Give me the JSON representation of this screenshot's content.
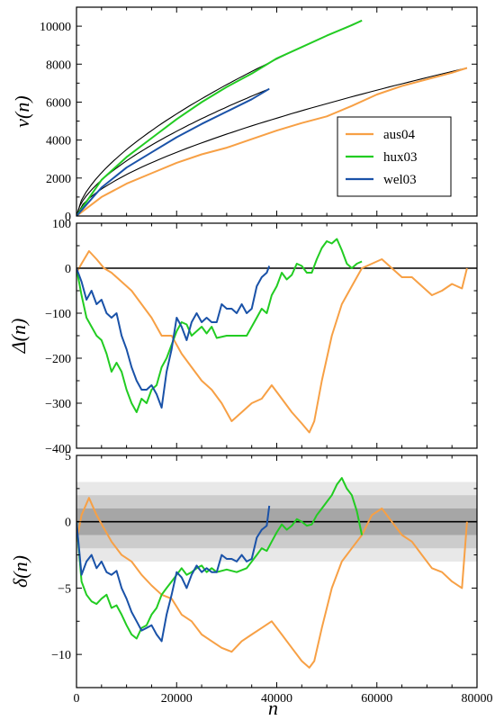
{
  "chart_data": [
    {
      "type": "line",
      "ylabel": "v(n)",
      "xlabel": "",
      "xlim": [
        0,
        80000
      ],
      "ylim": [
        0,
        11000
      ],
      "yticks": [
        0,
        2000,
        4000,
        6000,
        8000,
        10000
      ],
      "ytick_labels": [
        "0",
        "2000",
        "4000",
        "6000",
        "8000",
        "10000"
      ],
      "legend": {
        "placement": "right-middle",
        "entries": [
          "aus04",
          "hux03",
          "wel03"
        ]
      },
      "series": [
        {
          "name": "aus04",
          "color": "#f7a045",
          "x": [
            0,
            5000,
            10000,
            15000,
            20000,
            25000,
            30000,
            35000,
            40000,
            45000,
            50000,
            55000,
            60000,
            65000,
            70000,
            75000,
            78000
          ],
          "y": [
            0,
            1000,
            1700,
            2250,
            2800,
            3250,
            3600,
            4050,
            4500,
            4900,
            5250,
            5800,
            6400,
            6850,
            7200,
            7550,
            7800
          ]
        },
        {
          "name": "hux03",
          "color": "#22cc22",
          "x": [
            0,
            5000,
            10000,
            15000,
            20000,
            25000,
            30000,
            35000,
            40000,
            45000,
            50000,
            55000,
            57000
          ],
          "y": [
            0,
            1900,
            3100,
            4100,
            5100,
            6000,
            6800,
            7500,
            8300,
            8900,
            9500,
            10050,
            10300
          ]
        },
        {
          "name": "wel03",
          "color": "#1a52a8",
          "x": [
            0,
            5000,
            10000,
            15000,
            20000,
            25000,
            30000,
            35000,
            38500
          ],
          "y": [
            0,
            1500,
            2550,
            3350,
            4150,
            4850,
            5500,
            6150,
            6700
          ]
        }
      ],
      "fit_curves": {
        "color": "#000000",
        "series": [
          "aus04",
          "hux03",
          "wel03"
        ]
      }
    },
    {
      "type": "line",
      "ylabel": "Δ(n)",
      "xlabel": "",
      "xlim": [
        0,
        80000
      ],
      "ylim": [
        -400,
        100
      ],
      "yticks": [
        100,
        0,
        -100,
        -200,
        -300,
        -400
      ],
      "ytick_labels": [
        "100",
        "0",
        "−100",
        "−200",
        "−300",
        "−400"
      ],
      "reference_line": 0,
      "series": [
        {
          "name": "aus04",
          "color": "#f7a045",
          "x": [
            0,
            1000,
            2500,
            4000,
            5500,
            7000,
            9000,
            11000,
            13000,
            15000,
            17000,
            19000,
            21000,
            23000,
            25000,
            27000,
            29000,
            31000,
            33000,
            35000,
            37000,
            39000,
            41000,
            43000,
            45000,
            46500,
            47500,
            49000,
            51000,
            53000,
            55000,
            57000,
            59000,
            61000,
            63000,
            65000,
            67000,
            69000,
            71000,
            73000,
            75000,
            77000,
            78000
          ],
          "y": [
            -10,
            10,
            38,
            20,
            0,
            -10,
            -30,
            -50,
            -80,
            -110,
            -150,
            -150,
            -190,
            -220,
            -250,
            -270,
            -300,
            -340,
            -320,
            -300,
            -290,
            -260,
            -290,
            -320,
            -345,
            -365,
            -340,
            -250,
            -150,
            -80,
            -40,
            0,
            10,
            20,
            0,
            -20,
            -20,
            -40,
            -60,
            -50,
            -35,
            -45,
            0
          ]
        },
        {
          "name": "hux03",
          "color": "#22cc22",
          "x": [
            0,
            1000,
            2000,
            3000,
            4000,
            5000,
            6000,
            7000,
            8000,
            9000,
            10000,
            11000,
            12000,
            13000,
            14000,
            15000,
            16000,
            17000,
            18000,
            19000,
            20000,
            21000,
            22000,
            23000,
            24000,
            25000,
            26000,
            27000,
            28000,
            30000,
            32000,
            34000,
            36000,
            37000,
            38000,
            39000,
            40000,
            41000,
            42000,
            43000,
            44000,
            45000,
            46000,
            47000,
            48000,
            49000,
            50000,
            51000,
            52000,
            53000,
            54000,
            55000,
            56000,
            57000
          ],
          "y": [
            0,
            -60,
            -110,
            -130,
            -150,
            -160,
            -190,
            -230,
            -210,
            -230,
            -270,
            -300,
            -320,
            -290,
            -300,
            -270,
            -260,
            -220,
            -200,
            -170,
            -140,
            -120,
            -125,
            -150,
            -140,
            -130,
            -145,
            -130,
            -155,
            -150,
            -150,
            -150,
            -110,
            -90,
            -100,
            -60,
            -40,
            -10,
            -25,
            -15,
            10,
            5,
            -10,
            -10,
            20,
            45,
            60,
            55,
            65,
            40,
            10,
            0,
            10,
            15
          ]
        },
        {
          "name": "wel03",
          "color": "#1a52a8",
          "x": [
            0,
            1000,
            2000,
            3000,
            4000,
            5000,
            6000,
            7000,
            8000,
            9000,
            10000,
            11000,
            12000,
            13000,
            14000,
            15000,
            16000,
            17000,
            18000,
            19000,
            20000,
            21000,
            22000,
            23000,
            24000,
            25000,
            26000,
            27000,
            28000,
            29000,
            30000,
            31000,
            32000,
            33000,
            34000,
            35000,
            36000,
            37000,
            38000,
            38500
          ],
          "y": [
            0,
            -30,
            -70,
            -50,
            -80,
            -70,
            -100,
            -110,
            -100,
            -150,
            -180,
            -220,
            -250,
            -270,
            -270,
            -260,
            -280,
            -310,
            -230,
            -180,
            -110,
            -130,
            -160,
            -120,
            -100,
            -120,
            -110,
            -120,
            -120,
            -80,
            -90,
            -90,
            -100,
            -80,
            -100,
            -90,
            -40,
            -20,
            -10,
            5
          ]
        }
      ]
    },
    {
      "type": "line",
      "ylabel": "δ(n)",
      "xlabel": "n",
      "xlim": [
        0,
        80000
      ],
      "ylim": [
        -12.5,
        5
      ],
      "yticks": [
        5,
        0,
        -5,
        -10
      ],
      "ytick_labels": [
        "5",
        "0",
        "−5",
        "−10"
      ],
      "xticks": [
        0,
        20000,
        40000,
        60000,
        80000
      ],
      "xtick_labels": [
        "0",
        "20000",
        "40000",
        "60000",
        "80000"
      ],
      "reference_line": 0,
      "bands": [
        {
          "range": [
            -3,
            3
          ],
          "color": "#e8e8e8"
        },
        {
          "range": [
            -2,
            2
          ],
          "color": "#cccccc"
        },
        {
          "range": [
            -1,
            1
          ],
          "color": "#a6a6a6"
        }
      ],
      "series": [
        {
          "name": "aus04",
          "color": "#f7a045",
          "x": [
            0,
            1000,
            2500,
            4000,
            5500,
            7000,
            9000,
            11000,
            13000,
            15000,
            17000,
            19000,
            21000,
            23000,
            25000,
            27000,
            29000,
            31000,
            33000,
            35000,
            37000,
            39000,
            41000,
            43000,
            45000,
            46500,
            47500,
            49000,
            51000,
            53000,
            55000,
            57000,
            59000,
            61000,
            63000,
            65000,
            67000,
            69000,
            71000,
            73000,
            75000,
            77000,
            78000
          ],
          "y": [
            -1.5,
            0.5,
            1.8,
            0.5,
            -0.5,
            -1.5,
            -2.5,
            -3.0,
            -4.0,
            -4.8,
            -5.5,
            -5.8,
            -7.0,
            -7.5,
            -8.5,
            -9.0,
            -9.5,
            -9.8,
            -9.0,
            -8.5,
            -8.0,
            -7.5,
            -8.5,
            -9.5,
            -10.5,
            -11.0,
            -10.5,
            -8.0,
            -5.0,
            -3.0,
            -2.0,
            -1.0,
            0.5,
            1.0,
            0.0,
            -1.0,
            -1.5,
            -2.5,
            -3.5,
            -3.8,
            -4.5,
            -5.0,
            0.0
          ]
        },
        {
          "name": "hux03",
          "color": "#22cc22",
          "x": [
            0,
            1000,
            2000,
            3000,
            4000,
            5000,
            6000,
            7000,
            8000,
            9000,
            10000,
            11000,
            12000,
            13000,
            14000,
            15000,
            16000,
            17000,
            18000,
            19000,
            20000,
            21000,
            22000,
            23000,
            24000,
            25000,
            26000,
            27000,
            28000,
            30000,
            32000,
            34000,
            36000,
            37000,
            38000,
            39000,
            40000,
            41000,
            42000,
            43000,
            44000,
            45000,
            46000,
            47000,
            48000,
            49000,
            50000,
            51000,
            52000,
            53000,
            54000,
            55000,
            56000,
            57000
          ],
          "y": [
            0,
            -4.5,
            -5.5,
            -6.0,
            -6.2,
            -5.8,
            -5.5,
            -6.5,
            -6.3,
            -7.0,
            -7.8,
            -8.5,
            -8.8,
            -8.0,
            -7.8,
            -7.0,
            -6.5,
            -5.5,
            -5.0,
            -4.5,
            -4.0,
            -3.5,
            -4.0,
            -3.8,
            -3.5,
            -3.3,
            -3.8,
            -3.5,
            -3.8,
            -3.6,
            -3.8,
            -3.5,
            -2.5,
            -2.0,
            -2.2,
            -1.5,
            -0.8,
            -0.2,
            -0.6,
            -0.3,
            0.2,
            0.0,
            -0.3,
            -0.2,
            0.5,
            1.0,
            1.5,
            2.0,
            2.8,
            3.3,
            2.5,
            2.0,
            0.8,
            -1.0
          ]
        },
        {
          "name": "wel03",
          "color": "#1a52a8",
          "x": [
            0,
            1000,
            2000,
            3000,
            4000,
            5000,
            6000,
            7000,
            8000,
            9000,
            10000,
            11000,
            12000,
            13000,
            14000,
            15000,
            16000,
            17000,
            18000,
            19000,
            20000,
            21000,
            22000,
            23000,
            24000,
            25000,
            26000,
            27000,
            28000,
            29000,
            30000,
            31000,
            32000,
            33000,
            34000,
            35000,
            36000,
            37000,
            38000,
            38500
          ],
          "y": [
            0,
            -4.0,
            -3.0,
            -2.5,
            -3.5,
            -3.0,
            -3.8,
            -4.0,
            -3.7,
            -5.0,
            -5.8,
            -6.8,
            -7.5,
            -8.2,
            -8.0,
            -7.8,
            -8.5,
            -9.0,
            -7.0,
            -5.5,
            -3.8,
            -4.2,
            -5.0,
            -4.0,
            -3.3,
            -3.8,
            -3.5,
            -3.8,
            -3.8,
            -2.5,
            -2.8,
            -2.8,
            -3.0,
            -2.5,
            -3.0,
            -2.8,
            -1.2,
            -0.6,
            -0.3,
            1.2
          ]
        }
      ]
    }
  ]
}
